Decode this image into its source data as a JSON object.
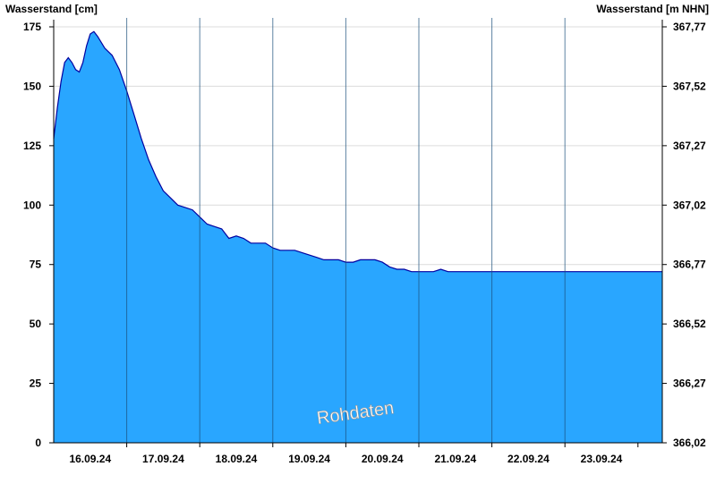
{
  "chart_data": {
    "type": "area",
    "title": "",
    "ylabel": "Wasserstand [cm]",
    "y2label": "Wasserstand [m NHN]",
    "watermark": "Rohdaten",
    "ylim": [
      0,
      175
    ],
    "y_ticks": [
      0,
      25,
      50,
      75,
      100,
      125,
      150,
      175
    ],
    "y_tick_labels": [
      "0",
      "25",
      "50",
      "75",
      "100",
      "125",
      "150",
      "175"
    ],
    "y2_tick_labels": [
      "366,02",
      "366,27",
      "366,52",
      "366,77",
      "367,02",
      "367,27",
      "367,52",
      "367,77"
    ],
    "x_tick_labels": [
      "16.09.24",
      "17.09.24",
      "18.09.24",
      "19.09.24",
      "20.09.24",
      "21.09.24",
      "22.09.24",
      "23.09.24"
    ],
    "xlim_days": [
      "15.09.24 12:00",
      "23.09.24 20:00"
    ],
    "grid": true,
    "colors": {
      "fill": "#29a6ff",
      "line": "#0000a0",
      "grid": "#dcdcdc",
      "day_line": "#1a4f7a"
    },
    "series": [
      {
        "x_days": [
          0,
          0.05,
          0.1,
          0.15,
          0.2,
          0.25,
          0.3,
          0.35,
          0.4,
          0.45,
          0.5,
          0.55,
          0.6,
          0.7,
          0.8,
          0.9,
          1.0,
          1.1,
          1.2,
          1.3,
          1.4,
          1.5,
          1.6,
          1.7,
          1.8,
          1.9,
          2.0,
          2.1,
          2.2,
          2.3,
          2.4,
          2.5,
          2.6,
          2.7,
          2.8,
          2.9,
          3.0,
          3.1,
          3.2,
          3.3,
          3.4,
          3.5,
          3.6,
          3.7,
          3.8,
          3.9,
          4.0,
          4.1,
          4.2,
          4.3,
          4.4,
          4.5,
          4.6,
          4.7,
          4.8,
          4.9,
          5.0,
          5.1,
          5.2,
          5.3,
          5.4,
          5.5,
          5.6,
          5.7,
          5.8,
          5.9,
          6.0,
          6.1,
          6.2,
          6.3,
          6.4,
          6.5,
          6.6,
          6.7,
          6.8,
          6.9,
          7.0,
          7.1,
          7.2,
          7.3,
          7.4,
          7.5,
          7.6,
          7.7,
          7.8,
          7.9,
          8.0
        ],
        "values": [
          128,
          141,
          152,
          160,
          162,
          160,
          157,
          156,
          160,
          167,
          172,
          173,
          171,
          166,
          163,
          157,
          148,
          138,
          128,
          119,
          112,
          106,
          103,
          100,
          99,
          98,
          95,
          92,
          91,
          90,
          86,
          87,
          86,
          84,
          84,
          84,
          82,
          81,
          81,
          81,
          80,
          79,
          78,
          77,
          77,
          77,
          76,
          76,
          77,
          77,
          77,
          76,
          74,
          73,
          73,
          72,
          72,
          72,
          72,
          73,
          72,
          72,
          72,
          72,
          72,
          72,
          72,
          72,
          72,
          72,
          72,
          72,
          72,
          72,
          72,
          72,
          72,
          72,
          72,
          72,
          72,
          72,
          72,
          72,
          72,
          72,
          72
        ]
      }
    ]
  }
}
